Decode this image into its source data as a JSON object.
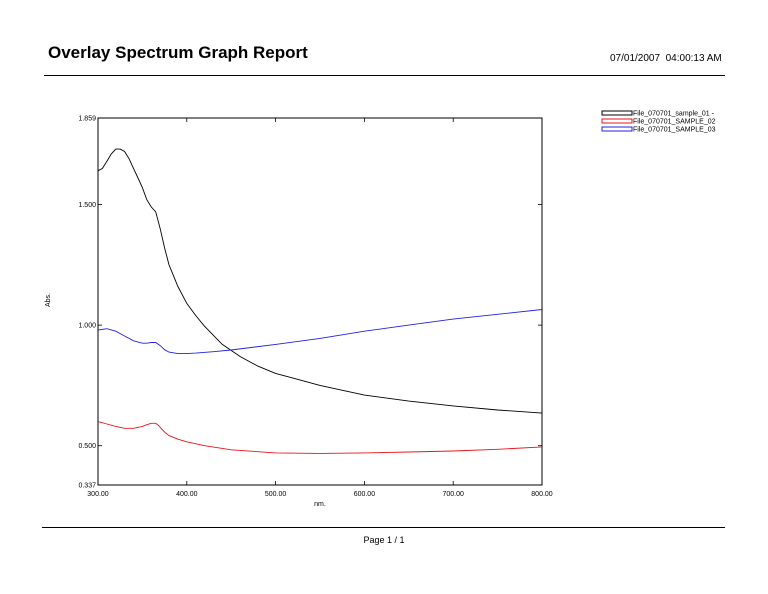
{
  "report": {
    "title": "Overlay Spectrum Graph Report",
    "datetime": "07/01/2007  04:00:13 AM",
    "footer": "Page 1 / 1"
  },
  "chart_data": {
    "type": "line",
    "xlabel": "nm.",
    "ylabel": "Abs.",
    "xlim": [
      300,
      800
    ],
    "ylim": [
      0.337,
      1.859
    ],
    "x_ticks": [
      "300.00",
      "400.00",
      "500.00",
      "600.00",
      "700.00",
      "800.00"
    ],
    "y_ticks": [
      "0.337",
      "0.500",
      "1.000",
      "1.500",
      "1.859"
    ],
    "y_tick_values": [
      0.337,
      0.5,
      1.0,
      1.5,
      1.859
    ],
    "legend_position": "top-right, outside plot",
    "series": [
      {
        "name": "File_070701_sample_01 -",
        "color": "#000000",
        "x": [
          300,
          305,
          310,
          315,
          320,
          325,
          330,
          335,
          340,
          345,
          350,
          355,
          360,
          365,
          370,
          375,
          380,
          390,
          400,
          410,
          420,
          440,
          460,
          480,
          500,
          520,
          550,
          600,
          650,
          700,
          750,
          800
        ],
        "y": [
          1.64,
          1.65,
          1.68,
          1.71,
          1.73,
          1.73,
          1.72,
          1.69,
          1.65,
          1.61,
          1.57,
          1.52,
          1.49,
          1.47,
          1.4,
          1.32,
          1.25,
          1.16,
          1.09,
          1.04,
          0.995,
          0.92,
          0.87,
          0.83,
          0.8,
          0.78,
          0.75,
          0.71,
          0.685,
          0.665,
          0.648,
          0.635
        ]
      },
      {
        "name": "File_070701_SAMPLE_02",
        "color": "#e8141c",
        "x": [
          300,
          310,
          320,
          330,
          340,
          350,
          355,
          360,
          365,
          368,
          372,
          376,
          380,
          390,
          400,
          420,
          450,
          500,
          550,
          600,
          650,
          700,
          750,
          800
        ],
        "y": [
          0.6,
          0.59,
          0.58,
          0.572,
          0.572,
          0.58,
          0.587,
          0.593,
          0.593,
          0.585,
          0.568,
          0.553,
          0.542,
          0.527,
          0.516,
          0.5,
          0.483,
          0.47,
          0.468,
          0.47,
          0.474,
          0.478,
          0.485,
          0.495
        ]
      },
      {
        "name": "File_070701_SAMPLE_03",
        "color": "#2222e0",
        "x": [
          300,
          310,
          320,
          330,
          340,
          350,
          355,
          360,
          365,
          370,
          375,
          380,
          390,
          400,
          410,
          430,
          450,
          500,
          550,
          600,
          650,
          700,
          750,
          800
        ],
        "y": [
          0.98,
          0.985,
          0.975,
          0.955,
          0.935,
          0.925,
          0.925,
          0.928,
          0.928,
          0.915,
          0.898,
          0.888,
          0.882,
          0.882,
          0.884,
          0.89,
          0.897,
          0.92,
          0.945,
          0.975,
          1.0,
          1.025,
          1.045,
          1.065
        ]
      }
    ]
  }
}
